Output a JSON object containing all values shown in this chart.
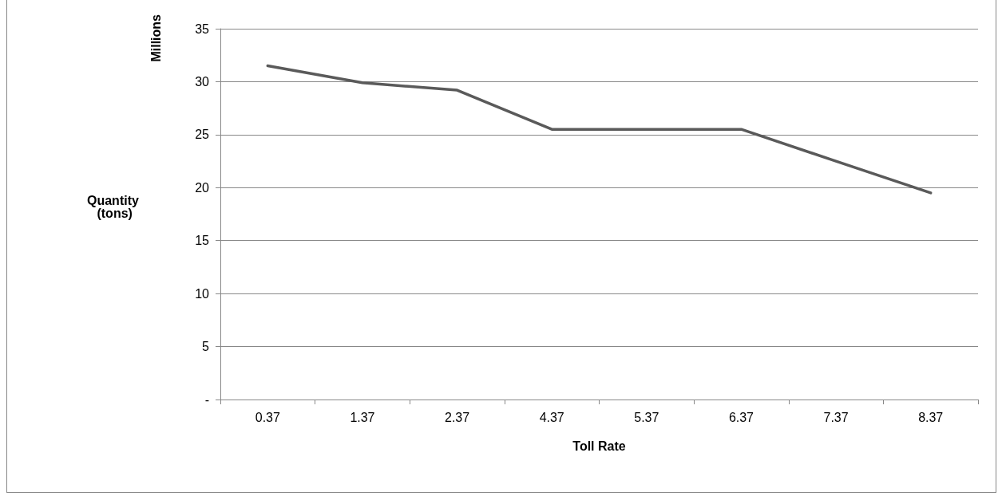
{
  "chart_data": {
    "type": "line",
    "xlabel": "Toll Rate",
    "ylabel": "Quantity (tons)",
    "annotations": [
      "Millions"
    ],
    "categories": [
      "0.37",
      "1.37",
      "2.37",
      "4.37",
      "5.37",
      "6.37",
      "7.37",
      "8.37"
    ],
    "series": [
      {
        "color": "#5a5a5a",
        "values": [
          31.5,
          29.9,
          29.2,
          25.5,
          25.5,
          25.5,
          22.5,
          19.5
        ]
      }
    ],
    "ylim": [
      0,
      35
    ],
    "yticks": [
      {
        "value": 0,
        "label": "-"
      },
      5,
      10,
      15,
      20,
      25,
      30,
      35
    ],
    "grid": "y",
    "marker": "none",
    "line_style": "solid"
  }
}
